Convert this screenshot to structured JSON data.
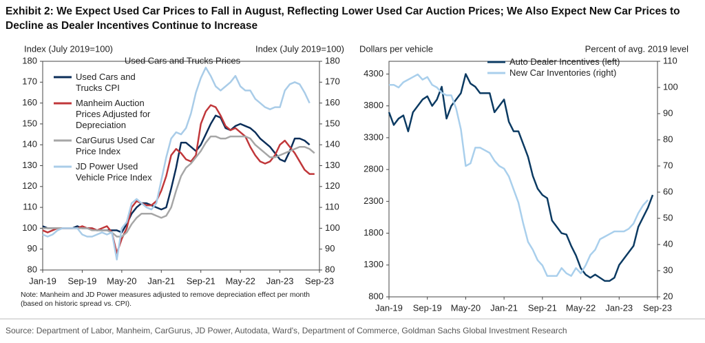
{
  "title": "Exhibit 2: We Expect Used Car Prices to Fall in August, Reflecting Lower Used Car Auction Prices; We Also Expect New Car Prices to Decline as Dealer Incentives Continue to Increase",
  "source": "Source: Department of Labor, Manheim, CarGurus, JD Power, Autodata, Ward's, Department of Commerce, Goldman Sachs Global Investment Research",
  "chart_data": [
    {
      "type": "line",
      "title": "Used Cars and Trucks Prices",
      "ylabel": "Index (July 2019=100)",
      "y2label": "Index (July 2019=100)",
      "note": "Note: Manheim and JD Power measures adjusted to remove depreciation effect per month (based on historic spread vs. CPI).",
      "legend": "upper left",
      "categories": [
        "Jan-19",
        "Feb-19",
        "Mar-19",
        "Apr-19",
        "May-19",
        "Jun-19",
        "Jul-19",
        "Aug-19",
        "Sep-19",
        "Oct-19",
        "Nov-19",
        "Dec-19",
        "Jan-20",
        "Feb-20",
        "Mar-20",
        "Apr-20",
        "May-20",
        "Jun-20",
        "Jul-20",
        "Aug-20",
        "Sep-20",
        "Oct-20",
        "Nov-20",
        "Dec-20",
        "Jan-21",
        "Feb-21",
        "Mar-21",
        "Apr-21",
        "May-21",
        "Jun-21",
        "Jul-21",
        "Aug-21",
        "Sep-21",
        "Oct-21",
        "Nov-21",
        "Dec-21",
        "Jan-22",
        "Feb-22",
        "Mar-22",
        "Apr-22",
        "May-22",
        "Jun-22",
        "Jul-22",
        "Aug-22",
        "Sep-22",
        "Oct-22",
        "Nov-22",
        "Dec-22",
        "Jan-23",
        "Feb-23",
        "Mar-23",
        "Apr-23",
        "May-23",
        "Jun-23",
        "Jul-23",
        "Aug-23",
        "Sep-23"
      ],
      "ylim": [
        80,
        180
      ],
      "yticks": [
        80,
        90,
        100,
        110,
        120,
        130,
        140,
        150,
        160,
        170,
        180
      ],
      "y2lim": [
        80,
        180
      ],
      "y2ticks": [
        80,
        90,
        100,
        110,
        120,
        130,
        140,
        150,
        160,
        170,
        180
      ],
      "series": [
        {
          "name": "Used Cars and Trucks CPI",
          "color": "#0b2e59",
          "values": [
            101,
            100,
            100,
            100,
            100,
            100,
            100,
            101,
            100,
            100,
            100,
            99,
            99,
            99,
            99,
            99,
            98,
            102,
            107,
            110,
            112,
            112,
            111,
            110,
            109,
            110,
            119,
            129,
            141,
            141,
            139,
            137,
            140,
            145,
            150,
            154,
            153,
            148,
            147,
            149,
            150,
            149,
            148,
            146,
            143,
            141,
            139,
            136,
            133,
            132,
            137,
            143,
            143,
            142,
            140,
            null,
            null
          ]
        },
        {
          "name": "Manheim Auction Prices Adjusted for Depreciation",
          "color": "#c0373a",
          "values": [
            99,
            98,
            99,
            100,
            100,
            100,
            100,
            100,
            101,
            100,
            100,
            99,
            100,
            101,
            98,
            88,
            95,
            100,
            110,
            113,
            112,
            111,
            111,
            113,
            118,
            125,
            135,
            138,
            136,
            133,
            132,
            135,
            150,
            156,
            159,
            158,
            154,
            149,
            147,
            148,
            146,
            144,
            139,
            135,
            132,
            131,
            132,
            135,
            140,
            142,
            139,
            136,
            132,
            128,
            126,
            126,
            null
          ]
        },
        {
          "name": "CarGurus Used Car Price Index",
          "color": "#a6a6a6",
          "values": [
            100,
            100,
            100,
            100,
            100,
            100,
            100,
            100,
            100,
            100,
            99,
            99,
            99,
            99,
            98,
            96,
            96,
            98,
            102,
            105,
            107,
            107,
            107,
            106,
            105,
            106,
            110,
            118,
            125,
            129,
            131,
            134,
            137,
            141,
            144,
            144,
            143,
            143,
            144,
            144,
            144,
            144,
            143,
            140,
            138,
            136,
            134,
            134,
            135,
            136,
            137,
            138,
            139,
            139,
            138,
            136,
            null
          ]
        },
        {
          "name": "JD Power Used Vehicle Price Index",
          "color": "#a9cce8",
          "values": [
            97,
            96,
            97,
            99,
            100,
            100,
            100,
            100,
            97,
            96,
            96,
            97,
            98,
            97,
            98,
            85,
            100,
            103,
            112,
            114,
            112,
            110,
            109,
            112,
            123,
            134,
            143,
            146,
            145,
            148,
            155,
            165,
            172,
            177,
            173,
            168,
            166,
            168,
            170,
            173,
            168,
            166,
            166,
            162,
            160,
            158,
            157,
            158,
            158,
            166,
            169,
            170,
            169,
            165,
            160,
            null,
            null
          ]
        }
      ]
    },
    {
      "type": "line",
      "ylabel": "Dollars per vehicle",
      "y2label": "Percent of avg. 2019 level",
      "legend": "upper center",
      "categories": [
        "Jan-19",
        "Feb-19",
        "Mar-19",
        "Apr-19",
        "May-19",
        "Jun-19",
        "Jul-19",
        "Aug-19",
        "Sep-19",
        "Oct-19",
        "Nov-19",
        "Dec-19",
        "Jan-20",
        "Feb-20",
        "Mar-20",
        "Apr-20",
        "May-20",
        "Jun-20",
        "Jul-20",
        "Aug-20",
        "Sep-20",
        "Oct-20",
        "Nov-20",
        "Dec-20",
        "Jan-21",
        "Feb-21",
        "Mar-21",
        "Apr-21",
        "May-21",
        "Jun-21",
        "Jul-21",
        "Aug-21",
        "Sep-21",
        "Oct-21",
        "Nov-21",
        "Dec-21",
        "Jan-22",
        "Feb-22",
        "Mar-22",
        "Apr-22",
        "May-22",
        "Jun-22",
        "Jul-22",
        "Aug-22",
        "Sep-22",
        "Oct-22",
        "Nov-22",
        "Dec-22",
        "Jan-23",
        "Feb-23",
        "Mar-23",
        "Apr-23",
        "May-23",
        "Jun-23",
        "Jul-23",
        "Aug-23",
        "Sep-23"
      ],
      "ylim": [
        800,
        4500
      ],
      "yticks": [
        800,
        1300,
        1800,
        2300,
        2800,
        3300,
        3800,
        4300
      ],
      "y2lim": [
        20,
        110
      ],
      "y2ticks": [
        20,
        30,
        40,
        50,
        60,
        70,
        80,
        90,
        100,
        110
      ],
      "series": [
        {
          "name": "Auto Dealer Incentives (left)",
          "color": "#0b3a62",
          "values": [
            3700,
            3500,
            3600,
            3650,
            3400,
            3700,
            3800,
            3900,
            3950,
            3800,
            3900,
            4100,
            3600,
            3800,
            3900,
            4000,
            4300,
            4150,
            4100,
            4000,
            4000,
            4000,
            3700,
            3800,
            3900,
            3550,
            3400,
            3400,
            3200,
            3000,
            2700,
            2500,
            2400,
            2350,
            2000,
            1900,
            1800,
            1780,
            1600,
            1450,
            1250,
            1150,
            1100,
            1150,
            1100,
            1050,
            1050,
            1100,
            1300,
            1400,
            1500,
            1600,
            1900,
            2050,
            2200,
            2400,
            null
          ]
        },
        {
          "name": "New Car Inventories (right)",
          "color": "#a9cfec",
          "axis": "y2",
          "values": [
            101,
            101,
            100,
            102,
            103,
            104,
            105,
            103,
            104,
            101,
            100,
            98,
            97,
            97,
            92,
            84,
            70,
            71,
            77,
            77,
            76,
            75,
            72,
            70,
            69,
            66,
            61,
            56,
            48,
            41,
            38,
            34,
            32,
            28,
            28,
            28,
            31,
            29,
            28,
            31,
            29,
            32,
            36,
            38,
            42,
            43,
            44,
            45,
            45,
            45,
            46,
            48,
            52,
            55,
            57,
            null,
            null
          ]
        }
      ]
    }
  ]
}
